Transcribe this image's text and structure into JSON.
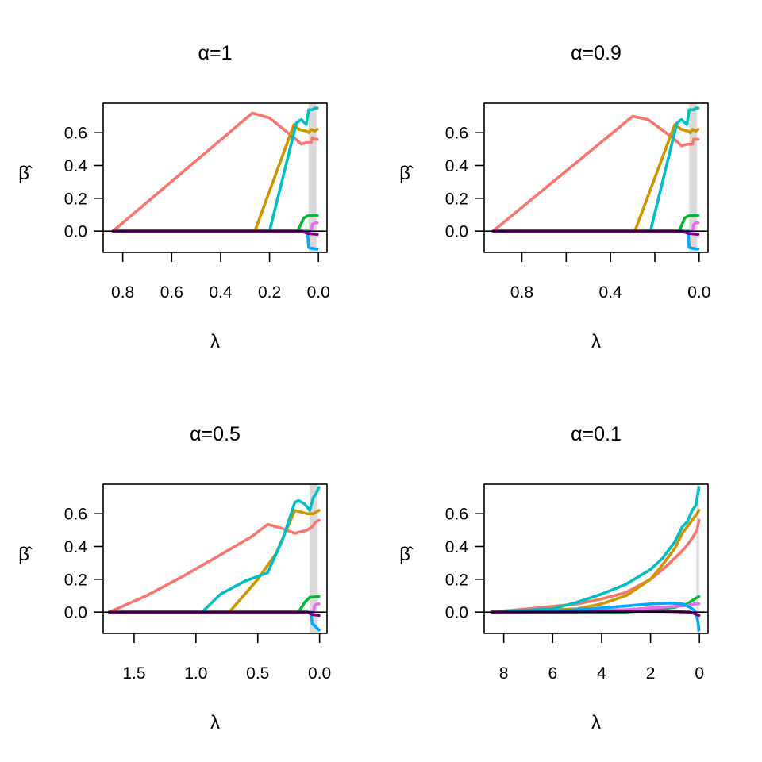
{
  "figure": {
    "background": "#ffffff"
  },
  "colors": {
    "s1": "#F8766D",
    "s2": "#CD9600",
    "s3": "#00BFC4",
    "s4": "#00BA38",
    "s5": "#E76BF3",
    "s6": "#00A9FF",
    "s7": "#7A0080",
    "band": "#d9d9d9",
    "axis": "#000000"
  },
  "chart_data": [
    {
      "type": "line",
      "title": "α=1",
      "xlabel": "λ",
      "ylabel": "β̂",
      "reverse_x": true,
      "xlim": [
        0.88,
        -0.035
      ],
      "ylim": [
        -0.13,
        0.78
      ],
      "xticks": [
        0.8,
        0.6,
        0.4,
        0.2,
        0.0
      ],
      "xtick_labels": [
        "0.8",
        "0.6",
        "0.4",
        "0.2",
        "0.0"
      ],
      "yticks": [
        0.0,
        0.2,
        0.4,
        0.6
      ],
      "ytick_labels": [
        "0.0",
        "0.2",
        "0.4",
        "0.6"
      ],
      "zero_line": 0,
      "band": [
        0.008,
        0.04
      ],
      "series": [
        {
          "color": "s1",
          "points": [
            [
              0.84,
              0
            ],
            [
              0.27,
              0.72
            ],
            [
              0.2,
              0.69
            ],
            [
              0.1,
              0.57
            ],
            [
              0.07,
              0.53
            ],
            [
              0.05,
              0.54
            ],
            [
              0.03,
              0.54
            ],
            [
              0.025,
              0.57
            ],
            [
              0.015,
              0.56
            ],
            [
              0.005,
              0.56
            ]
          ]
        },
        {
          "color": "s2",
          "points": [
            [
              0.84,
              0
            ],
            [
              0.26,
              0
            ],
            [
              0.1,
              0.65
            ],
            [
              0.08,
              0.62
            ],
            [
              0.05,
              0.61
            ],
            [
              0.04,
              0.6
            ],
            [
              0.03,
              0.62
            ],
            [
              0.015,
              0.61
            ],
            [
              0.005,
              0.62
            ]
          ]
        },
        {
          "color": "s3",
          "points": [
            [
              0.84,
              0
            ],
            [
              0.2,
              0
            ],
            [
              0.09,
              0.66
            ],
            [
              0.07,
              0.68
            ],
            [
              0.05,
              0.65
            ],
            [
              0.04,
              0.74
            ],
            [
              0.025,
              0.74
            ],
            [
              0.015,
              0.75
            ],
            [
              0.005,
              0.75
            ]
          ]
        },
        {
          "color": "s4",
          "points": [
            [
              0.84,
              0
            ],
            [
              0.085,
              0
            ],
            [
              0.06,
              0.08
            ],
            [
              0.04,
              0.095
            ],
            [
              0.005,
              0.095
            ]
          ]
        },
        {
          "color": "s5",
          "points": [
            [
              0.84,
              0
            ],
            [
              0.03,
              0
            ],
            [
              0.025,
              0.04
            ],
            [
              0.015,
              0.05
            ],
            [
              0.005,
              0.05
            ]
          ]
        },
        {
          "color": "s6",
          "points": [
            [
              0.84,
              0
            ],
            [
              0.045,
              0
            ],
            [
              0.04,
              -0.1
            ],
            [
              0.03,
              -0.105
            ],
            [
              0.005,
              -0.11
            ]
          ]
        },
        {
          "color": "s7",
          "points": [
            [
              0.84,
              0
            ],
            [
              0.07,
              0
            ],
            [
              0.04,
              -0.015
            ],
            [
              0.005,
              -0.02
            ]
          ]
        }
      ]
    },
    {
      "type": "line",
      "title": "α=0.9",
      "xlabel": "λ",
      "ylabel": "β̂",
      "reverse_x": true,
      "xlim": [
        0.97,
        -0.04
      ],
      "ylim": [
        -0.13,
        0.78
      ],
      "xticks": [
        0.8,
        0.6,
        0.4,
        0.2,
        0.0
      ],
      "xtick_labels": [
        "0.8",
        "",
        "0.4",
        "",
        "0.0"
      ],
      "yticks": [
        0.0,
        0.2,
        0.4,
        0.6
      ],
      "ytick_labels": [
        "0.0",
        "0.2",
        "0.4",
        "0.6"
      ],
      "zero_line": 0,
      "band": [
        0.01,
        0.045
      ],
      "series": [
        {
          "color": "s1",
          "points": [
            [
              0.93,
              0
            ],
            [
              0.3,
              0.7
            ],
            [
              0.23,
              0.68
            ],
            [
              0.12,
              0.57
            ],
            [
              0.08,
              0.52
            ],
            [
              0.05,
              0.53
            ],
            [
              0.03,
              0.53
            ],
            [
              0.025,
              0.56
            ],
            [
              0.015,
              0.56
            ],
            [
              0.005,
              0.56
            ]
          ]
        },
        {
          "color": "s2",
          "points": [
            [
              0.93,
              0
            ],
            [
              0.29,
              0
            ],
            [
              0.11,
              0.65
            ],
            [
              0.08,
              0.62
            ],
            [
              0.05,
              0.61
            ],
            [
              0.04,
              0.6
            ],
            [
              0.03,
              0.62
            ],
            [
              0.015,
              0.61
            ],
            [
              0.005,
              0.62
            ]
          ]
        },
        {
          "color": "s3",
          "points": [
            [
              0.93,
              0
            ],
            [
              0.22,
              0
            ],
            [
              0.1,
              0.66
            ],
            [
              0.08,
              0.68
            ],
            [
              0.055,
              0.65
            ],
            [
              0.045,
              0.74
            ],
            [
              0.025,
              0.74
            ],
            [
              0.015,
              0.75
            ],
            [
              0.005,
              0.75
            ]
          ]
        },
        {
          "color": "s4",
          "points": [
            [
              0.93,
              0
            ],
            [
              0.09,
              0
            ],
            [
              0.065,
              0.08
            ],
            [
              0.045,
              0.095
            ],
            [
              0.005,
              0.095
            ]
          ]
        },
        {
          "color": "s5",
          "points": [
            [
              0.93,
              0
            ],
            [
              0.03,
              0
            ],
            [
              0.025,
              0.04
            ],
            [
              0.015,
              0.05
            ],
            [
              0.005,
              0.05
            ]
          ]
        },
        {
          "color": "s6",
          "points": [
            [
              0.93,
              0
            ],
            [
              0.05,
              0
            ],
            [
              0.045,
              -0.1
            ],
            [
              0.03,
              -0.105
            ],
            [
              0.005,
              -0.11
            ]
          ]
        },
        {
          "color": "s7",
          "points": [
            [
              0.93,
              0
            ],
            [
              0.08,
              0
            ],
            [
              0.045,
              -0.015
            ],
            [
              0.005,
              -0.02
            ]
          ]
        }
      ]
    },
    {
      "type": "line",
      "title": "α=0.5",
      "xlabel": "λ",
      "ylabel": "β̂",
      "reverse_x": true,
      "xlim": [
        1.75,
        -0.06
      ],
      "ylim": [
        -0.13,
        0.78
      ],
      "xticks": [
        1.5,
        1.0,
        0.5,
        0.0
      ],
      "xtick_labels": [
        "1.5",
        "1.0",
        "0.5",
        "0.0"
      ],
      "yticks": [
        0.0,
        0.2,
        0.4,
        0.6
      ],
      "ytick_labels": [
        "0.0",
        "0.2",
        "0.4",
        "0.6"
      ],
      "zero_line": 0,
      "band": [
        0.015,
        0.08
      ],
      "series": [
        {
          "color": "s1",
          "points": [
            [
              1.7,
              0
            ],
            [
              1.4,
              0.1
            ],
            [
              1.1,
              0.22
            ],
            [
              0.8,
              0.35
            ],
            [
              0.55,
              0.46
            ],
            [
              0.42,
              0.535
            ],
            [
              0.3,
              0.51
            ],
            [
              0.2,
              0.48
            ],
            [
              0.1,
              0.5
            ],
            [
              0.06,
              0.52
            ],
            [
              0.03,
              0.55
            ],
            [
              0.005,
              0.56
            ]
          ]
        },
        {
          "color": "s2",
          "points": [
            [
              1.7,
              0
            ],
            [
              0.73,
              0
            ],
            [
              0.5,
              0.2
            ],
            [
              0.35,
              0.36
            ],
            [
              0.2,
              0.62
            ],
            [
              0.15,
              0.61
            ],
            [
              0.1,
              0.6
            ],
            [
              0.05,
              0.6
            ],
            [
              0.03,
              0.61
            ],
            [
              0.005,
              0.62
            ]
          ]
        },
        {
          "color": "s3",
          "points": [
            [
              1.7,
              0
            ],
            [
              0.95,
              0
            ],
            [
              0.8,
              0.11
            ],
            [
              0.6,
              0.19
            ],
            [
              0.42,
              0.24
            ],
            [
              0.3,
              0.44
            ],
            [
              0.2,
              0.67
            ],
            [
              0.17,
              0.68
            ],
            [
              0.12,
              0.66
            ],
            [
              0.08,
              0.62
            ],
            [
              0.05,
              0.7
            ],
            [
              0.03,
              0.72
            ],
            [
              0.005,
              0.76
            ]
          ]
        },
        {
          "color": "s4",
          "points": [
            [
              1.7,
              0
            ],
            [
              0.17,
              0
            ],
            [
              0.12,
              0.06
            ],
            [
              0.08,
              0.09
            ],
            [
              0.005,
              0.095
            ]
          ]
        },
        {
          "color": "s5",
          "points": [
            [
              1.7,
              0
            ],
            [
              0.05,
              0
            ],
            [
              0.04,
              0.04
            ],
            [
              0.02,
              0.05
            ],
            [
              0.005,
              0.05
            ]
          ]
        },
        {
          "color": "s6",
          "points": [
            [
              1.7,
              0
            ],
            [
              0.07,
              0
            ],
            [
              0.06,
              -0.07
            ],
            [
              0.03,
              -0.09
            ],
            [
              0.005,
              -0.11
            ]
          ]
        },
        {
          "color": "s7",
          "points": [
            [
              1.7,
              0
            ],
            [
              0.1,
              0
            ],
            [
              0.06,
              -0.015
            ],
            [
              0.005,
              -0.02
            ]
          ]
        }
      ]
    },
    {
      "type": "line",
      "title": "α=0.1",
      "xlabel": "λ",
      "ylabel": "β̂",
      "reverse_x": true,
      "xlim": [
        8.8,
        -0.35
      ],
      "ylim": [
        -0.13,
        0.78
      ],
      "xticks": [
        8,
        6,
        4,
        2,
        0
      ],
      "xtick_labels": [
        "8",
        "6",
        "4",
        "2",
        "0"
      ],
      "yticks": [
        0.0,
        0.2,
        0.4,
        0.6
      ],
      "ytick_labels": [
        "0.0",
        "0.2",
        "0.4",
        "0.6"
      ],
      "zero_line": 0,
      "band": [
        0.02,
        0.12
      ],
      "series": [
        {
          "color": "s1",
          "points": [
            [
              8.5,
              0
            ],
            [
              7,
              0.02
            ],
            [
              5,
              0.05
            ],
            [
              4,
              0.08
            ],
            [
              3,
              0.12
            ],
            [
              2,
              0.2
            ],
            [
              1.5,
              0.26
            ],
            [
              1,
              0.33
            ],
            [
              0.6,
              0.39
            ],
            [
              0.3,
              0.45
            ],
            [
              0.1,
              0.5
            ],
            [
              0.02,
              0.56
            ]
          ]
        },
        {
          "color": "s2",
          "points": [
            [
              8.5,
              0
            ],
            [
              5,
              0.02
            ],
            [
              4,
              0.05
            ],
            [
              3,
              0.1
            ],
            [
              2,
              0.2
            ],
            [
              1.5,
              0.29
            ],
            [
              1,
              0.39
            ],
            [
              0.7,
              0.48
            ],
            [
              0.4,
              0.54
            ],
            [
              0.2,
              0.58
            ],
            [
              0.02,
              0.62
            ]
          ]
        },
        {
          "color": "s3",
          "points": [
            [
              8.5,
              0
            ],
            [
              6,
              0.02
            ],
            [
              5,
              0.06
            ],
            [
              4,
              0.11
            ],
            [
              3,
              0.17
            ],
            [
              2,
              0.26
            ],
            [
              1.5,
              0.33
            ],
            [
              1,
              0.43
            ],
            [
              0.7,
              0.52
            ],
            [
              0.5,
              0.55
            ],
            [
              0.3,
              0.62
            ],
            [
              0.15,
              0.65
            ],
            [
              0.02,
              0.76
            ]
          ]
        },
        {
          "color": "s4",
          "points": [
            [
              8.5,
              0
            ],
            [
              3,
              0
            ],
            [
              2,
              0.01
            ],
            [
              1,
              0.03
            ],
            [
              0.5,
              0.05
            ],
            [
              0.2,
              0.08
            ],
            [
              0.02,
              0.095
            ]
          ]
        },
        {
          "color": "s5",
          "points": [
            [
              8.5,
              0
            ],
            [
              5,
              0.005
            ],
            [
              3,
              0.015
            ],
            [
              2,
              0.025
            ],
            [
              1,
              0.035
            ],
            [
              0.5,
              0.04
            ],
            [
              0.2,
              0.05
            ],
            [
              0.02,
              0.05
            ]
          ]
        },
        {
          "color": "s6",
          "points": [
            [
              8.5,
              0
            ],
            [
              6,
              0.005
            ],
            [
              4,
              0.025
            ],
            [
              2,
              0.05
            ],
            [
              1.2,
              0.055
            ],
            [
              0.7,
              0.05
            ],
            [
              0.4,
              0.03
            ],
            [
              0.2,
              0.01
            ],
            [
              0.1,
              -0.03
            ],
            [
              0.05,
              -0.07
            ],
            [
              0.02,
              -0.11
            ]
          ]
        },
        {
          "color": "s7",
          "points": [
            [
              8.5,
              0
            ],
            [
              4,
              0.003
            ],
            [
              2,
              0.005
            ],
            [
              1,
              0.003
            ],
            [
              0.4,
              0
            ],
            [
              0.2,
              -0.01
            ],
            [
              0.02,
              -0.02
            ]
          ]
        }
      ]
    }
  ]
}
